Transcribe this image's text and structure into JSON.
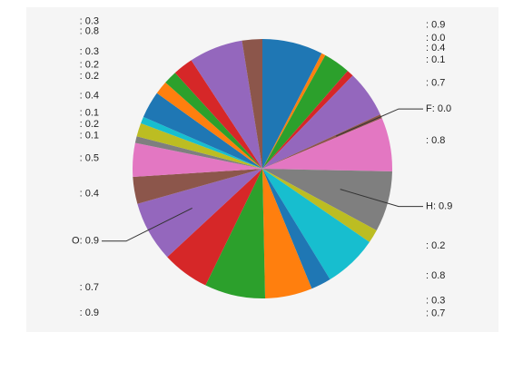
{
  "chart_data": {
    "type": "pie",
    "slices": [
      {
        "name": "",
        "value": 0.9,
        "color": "#1f77b4"
      },
      {
        "name": "",
        "value": 0.0,
        "color": "#ff7f0e"
      },
      {
        "name": "",
        "value": 0.4,
        "color": "#2ca02c"
      },
      {
        "name": "",
        "value": 0.1,
        "color": "#d62728"
      },
      {
        "name": "",
        "value": 0.7,
        "color": "#9467bd"
      },
      {
        "name": "F",
        "value": 0.0,
        "color": "#8c564b"
      },
      {
        "name": "",
        "value": 0.8,
        "color": "#e377c2"
      },
      {
        "name": "H",
        "value": 0.9,
        "color": "#7f7f7f"
      },
      {
        "name": "",
        "value": 0.2,
        "color": "#bcbd22"
      },
      {
        "name": "",
        "value": 0.8,
        "color": "#17becf"
      },
      {
        "name": "",
        "value": 0.3,
        "color": "#1f77b4"
      },
      {
        "name": "",
        "value": 0.7,
        "color": "#ff7f0e"
      },
      {
        "name": "",
        "value": 0.9,
        "color": "#2ca02c"
      },
      {
        "name": "",
        "value": 0.7,
        "color": "#d62728"
      },
      {
        "name": "O",
        "value": 0.9,
        "color": "#9467bd"
      },
      {
        "name": "",
        "value": 0.4,
        "color": "#8c564b"
      },
      {
        "name": "",
        "value": 0.5,
        "color": "#e377c2"
      },
      {
        "name": "",
        "value": 0.1,
        "color": "#7f7f7f"
      },
      {
        "name": "",
        "value": 0.2,
        "color": "#bcbd22"
      },
      {
        "name": "",
        "value": 0.1,
        "color": "#17becf"
      },
      {
        "name": "",
        "value": 0.4,
        "color": "#1f77b4"
      },
      {
        "name": "",
        "value": 0.2,
        "color": "#ff7f0e"
      },
      {
        "name": "",
        "value": 0.2,
        "color": "#2ca02c"
      },
      {
        "name": "",
        "value": 0.3,
        "color": "#d62728"
      },
      {
        "name": "",
        "value": 0.8,
        "color": "#9467bd"
      },
      {
        "name": "",
        "value": 0.3,
        "color": "#8c564b"
      }
    ],
    "labeled_slices": [
      "F",
      "H",
      "O"
    ],
    "background": "#f5f5f5"
  }
}
